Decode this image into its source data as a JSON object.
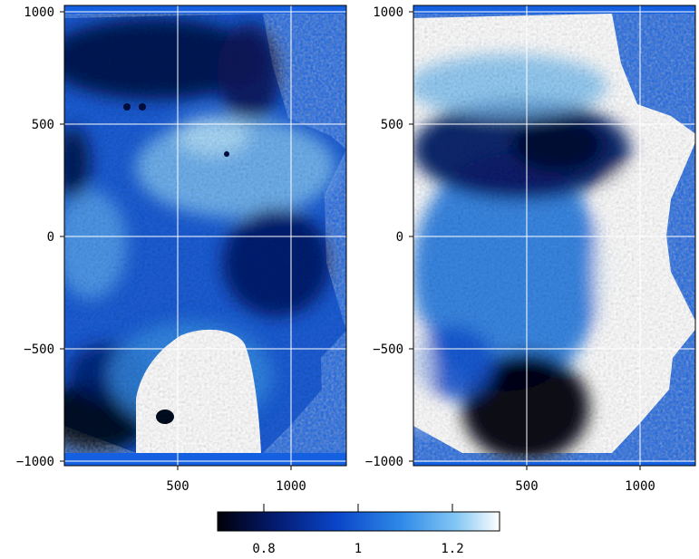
{
  "chart_data": [
    {
      "type": "heatmap",
      "title": "",
      "xlabel": "",
      "ylabel": "",
      "xlim": [
        0,
        1250
      ],
      "ylim": [
        -1020,
        1020
      ],
      "x_ticks": [
        500,
        1000
      ],
      "x_tick_labels": [
        "500",
        "1000"
      ],
      "y_ticks": [
        1000,
        500,
        0,
        -500,
        -1000
      ],
      "y_tick_labels": [
        "1000",
        "500",
        "0",
        "−500",
        "−1000"
      ],
      "grid": true,
      "background_color": "#1560e0",
      "regions": [
        {
          "name": "dark upper-left band",
          "x": [
            0,
            600
          ],
          "y": [
            650,
            1000
          ],
          "value": 0.75
        },
        {
          "name": "bright central band",
          "x": [
            500,
            1000
          ],
          "y": [
            100,
            500
          ],
          "value": 1.15
        },
        {
          "name": "dark right-centre patch",
          "x": [
            800,
            1150
          ],
          "y": [
            -300,
            100
          ],
          "value": 0.8
        },
        {
          "name": "saturated lower region",
          "x": [
            350,
            870
          ],
          "y": [
            -1000,
            -420
          ],
          "value": 1.3
        },
        {
          "name": "dark lower-left corner",
          "x": [
            0,
            350
          ],
          "y": [
            -1000,
            -650
          ],
          "value": 0.7
        }
      ]
    },
    {
      "type": "heatmap",
      "title": "",
      "xlabel": "",
      "ylabel": "",
      "xlim": [
        0,
        1250
      ],
      "ylim": [
        -1020,
        1020
      ],
      "x_ticks": [
        500,
        1000
      ],
      "x_tick_labels": [
        "500",
        "1000"
      ],
      "y_ticks": [
        1000,
        500,
        0,
        -500,
        -1000
      ],
      "y_tick_labels": [
        "1000",
        "500",
        "0",
        "−500",
        "−1000"
      ],
      "grid": true,
      "background_color": "#1560e0",
      "regions": [
        {
          "name": "saturated outer ring",
          "x": [
            0,
            1250
          ],
          "y": [
            -1000,
            1000
          ],
          "value": 1.3
        },
        {
          "name": "dark central band",
          "x": [
            100,
            850
          ],
          "y": [
            100,
            650
          ],
          "value": 0.8
        },
        {
          "name": "dark lower core",
          "x": [
            300,
            800
          ],
          "y": [
            -1000,
            -500
          ],
          "value": 0.7
        },
        {
          "name": "mid-blue interior",
          "x": [
            50,
            800
          ],
          "y": [
            -450,
            100
          ],
          "value": 1.0
        }
      ]
    }
  ],
  "colorbar": {
    "min": 0.7,
    "max": 1.32,
    "ticks": [
      0.8,
      1.0,
      1.2
    ],
    "tick_labels": [
      "0.8",
      "1",
      "1.2"
    ],
    "colormap": [
      "#000008",
      "#041a6e",
      "#0a44c8",
      "#2e8ae8",
      "#86c8f4",
      "#ffffff"
    ]
  }
}
